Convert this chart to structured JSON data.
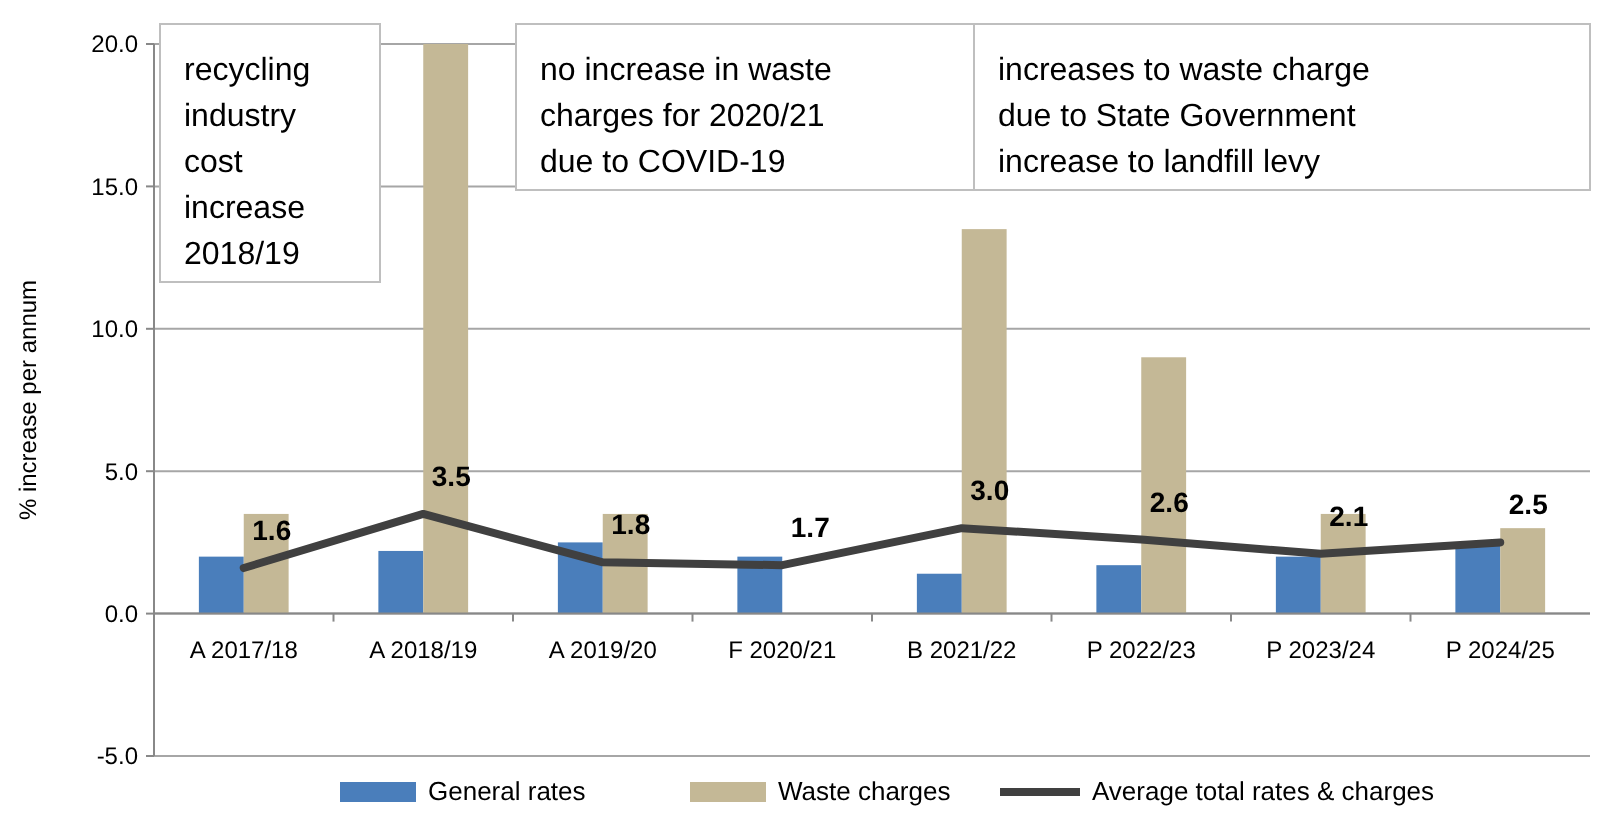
{
  "chart_data": {
    "type": "bar",
    "ylabel": "% increase per annum",
    "categories": [
      "A 2017/18",
      "A 2018/19",
      "A 2019/20",
      "F 2020/21",
      "B 2021/22",
      "P 2022/23",
      "P 2023/24",
      "P 2024/25"
    ],
    "series": [
      {
        "name": "General rates",
        "color": "#4a7ebb",
        "values": [
          2.0,
          2.2,
          2.5,
          2.0,
          1.4,
          1.7,
          2.0,
          2.4
        ]
      },
      {
        "name": "Waste charges",
        "color": "#c4b896",
        "values": [
          3.5,
          20,
          3.5,
          null,
          13.5,
          9.0,
          3.5,
          3.0
        ]
      },
      {
        "name": "Average total rates & charges",
        "type": "line",
        "color": "#404040",
        "values": [
          1.6,
          3.5,
          1.8,
          1.7,
          3.0,
          2.6,
          2.1,
          2.5
        ],
        "value_labels": [
          "1.6",
          "3.5",
          "1.8",
          "1.7",
          "3.0",
          "2.6",
          "2.1",
          "2.5"
        ]
      }
    ],
    "ylim": [
      -5,
      20
    ],
    "yticks": [
      {
        "value": -5,
        "label": "-5.0"
      },
      {
        "value": 0,
        "label": "0.0"
      },
      {
        "value": 5,
        "label": "5.0"
      },
      {
        "value": 10,
        "label": "10.0"
      },
      {
        "value": 15,
        "label": "15.0"
      },
      {
        "value": 20,
        "label": "20.0"
      }
    ],
    "grid": "y",
    "legend": "bottom",
    "marker": "none",
    "line_style": "solid",
    "annotations": [
      "recycling industry cost increase 2018/19",
      "no increase in waste charges for 2020/21 due to COVID-19",
      "increases to waste charge due to State Government increase to landfill levy"
    ]
  }
}
